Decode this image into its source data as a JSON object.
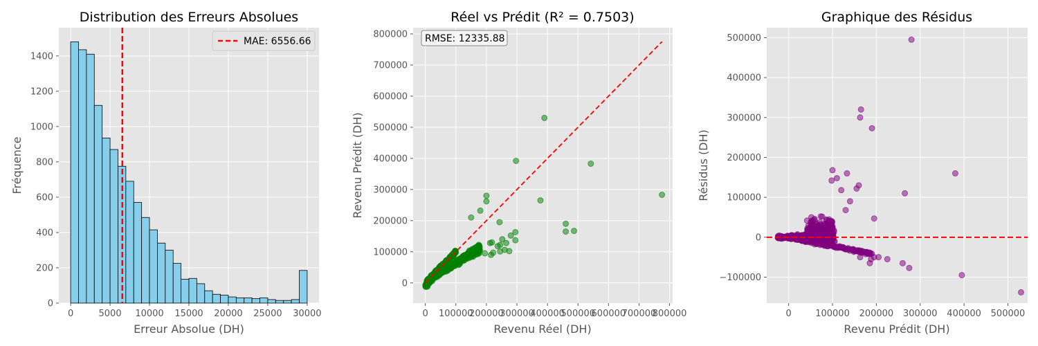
{
  "chart_data": [
    {
      "type": "bar",
      "title": "Distribution des Erreurs Absolues",
      "xlabel": "Erreur Absolue (DH)",
      "ylabel": "Fréquence",
      "xlim": [
        -1500,
        31500
      ],
      "ylim": [
        0,
        1560
      ],
      "xticks": [
        0,
        5000,
        10000,
        15000,
        20000,
        25000,
        30000
      ],
      "yticks": [
        0,
        200,
        400,
        600,
        800,
        1000,
        1200,
        1400
      ],
      "bin_width": 1000,
      "bin_starts": [
        0,
        1000,
        2000,
        3000,
        4000,
        5000,
        6000,
        7000,
        8000,
        9000,
        10000,
        11000,
        12000,
        13000,
        14000,
        15000,
        16000,
        17000,
        18000,
        19000,
        20000,
        21000,
        22000,
        23000,
        24000,
        25000,
        26000,
        27000,
        28000,
        29000
      ],
      "counts": [
        1480,
        1435,
        1410,
        1120,
        935,
        870,
        775,
        690,
        570,
        485,
        415,
        340,
        300,
        225,
        135,
        140,
        110,
        70,
        50,
        45,
        35,
        30,
        30,
        25,
        30,
        20,
        15,
        15,
        20,
        185
      ],
      "bar_color": "#87ceeb",
      "reference_line": {
        "x": 6556.66,
        "label": "MAE: 6556.66",
        "color": "#ff0000",
        "style": "dashed"
      },
      "legend": "top-right",
      "grid": true
    },
    {
      "type": "scatter",
      "title": "Réel vs Prédit (R² = 0.7503)",
      "xlabel": "Revenu Réel (DH)",
      "ylabel": "Revenu Prédit (DH)",
      "xlim": [
        -40000,
        810000
      ],
      "ylim": [
        -65000,
        820000
      ],
      "xticks": [
        0,
        100000,
        200000,
        300000,
        400000,
        500000,
        600000,
        700000,
        800000
      ],
      "yticks": [
        0,
        100000,
        200000,
        300000,
        400000,
        500000,
        600000,
        700000,
        800000
      ],
      "point_color": "#008000",
      "reference_line": {
        "x": [
          0,
          775000
        ],
        "y": [
          0,
          775000
        ],
        "color": "#ff0000",
        "style": "dashed"
      },
      "annotation": "RMSE: 12335.88",
      "outliers": [
        [
          390000,
          530000
        ],
        [
          297000,
          392000
        ],
        [
          542000,
          383000
        ],
        [
          775000,
          283000
        ],
        [
          377000,
          265000
        ],
        [
          200000,
          280000
        ],
        [
          200000,
          262000
        ],
        [
          180000,
          232000
        ],
        [
          150000,
          210000
        ],
        [
          243000,
          195000
        ],
        [
          460000,
          190000
        ],
        [
          487000,
          167000
        ],
        [
          460000,
          165000
        ],
        [
          295000,
          163000
        ],
        [
          295000,
          137000
        ],
        [
          280000,
          152000
        ],
        [
          252000,
          140000
        ],
        [
          265000,
          128000
        ],
        [
          245000,
          122000
        ],
        [
          218000,
          130000
        ],
        [
          212000,
          128000
        ],
        [
          237000,
          118000
        ],
        [
          275000,
          102000
        ],
        [
          222000,
          97000
        ],
        [
          245000,
          101000
        ],
        [
          215000,
          90000
        ],
        [
          260000,
          106000
        ],
        [
          195000,
          95000
        ]
      ],
      "grid": true
    },
    {
      "type": "scatter",
      "title": "Graphique des Résidus",
      "xlabel": "Revenu Prédit (DH)",
      "ylabel": "Résidus (DH)",
      "xlim": [
        -50000,
        545000
      ],
      "ylim": [
        -165000,
        525000
      ],
      "xticks": [
        0,
        100000,
        200000,
        300000,
        400000,
        500000
      ],
      "yticks": [
        -100000,
        0,
        100000,
        200000,
        300000,
        400000,
        500000
      ],
      "ytick_labels": [
        "−100000",
        "0",
        "100000",
        "200000",
        "300000",
        "400000",
        "500000"
      ],
      "point_color": "#800080",
      "reference_line": {
        "y": 0,
        "color": "#ff0000",
        "style": "dashed"
      },
      "outliers": [
        [
          280000,
          495000
        ],
        [
          165000,
          320000
        ],
        [
          163000,
          300000
        ],
        [
          190000,
          273000
        ],
        [
          380000,
          160000
        ],
        [
          133000,
          160000
        ],
        [
          100000,
          168000
        ],
        [
          265000,
          110000
        ],
        [
          195000,
          47000
        ],
        [
          110000,
          148000
        ],
        [
          98000,
          142000
        ],
        [
          155000,
          122000
        ],
        [
          140000,
          90000
        ],
        [
          130000,
          68000
        ],
        [
          160000,
          130000
        ],
        [
          120000,
          118000
        ],
        [
          395000,
          -95000
        ],
        [
          275000,
          -77000
        ],
        [
          260000,
          -65000
        ],
        [
          225000,
          -55000
        ],
        [
          205000,
          -50000
        ],
        [
          188000,
          -55000
        ],
        [
          185000,
          -65000
        ],
        [
          195000,
          -50000
        ],
        [
          530000,
          -138000
        ],
        [
          175000,
          -38000
        ],
        [
          163000,
          -50000
        ]
      ],
      "grid": true
    }
  ]
}
